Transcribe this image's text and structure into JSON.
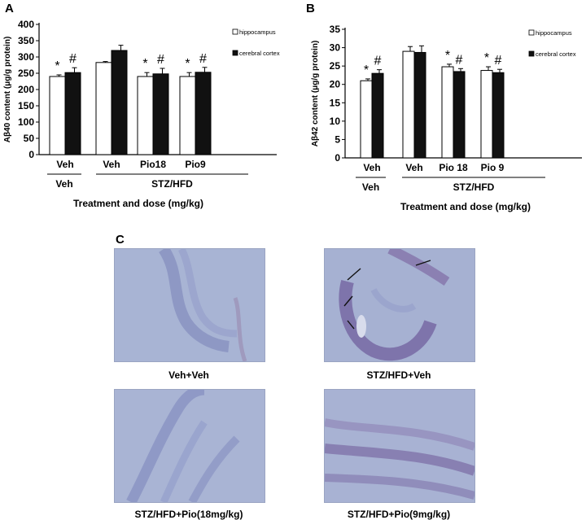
{
  "panels": {
    "a": "A",
    "b": "B",
    "c": "C"
  },
  "chart_data": [
    {
      "type": "bar",
      "panel": "A",
      "ylabel": "Aβ40 content (μg/g protein)",
      "xlabel": "Treatment and dose (mg/kg)",
      "ylim": [
        0,
        400
      ],
      "yticks": [
        0,
        50,
        100,
        150,
        200,
        250,
        300,
        350,
        400
      ],
      "categories": [
        "Veh",
        "Veh",
        "Pio18",
        "Pio9"
      ],
      "groups": [
        {
          "label": "Veh",
          "categories": [
            0
          ]
        },
        {
          "label": "STZ/HFD",
          "categories": [
            1,
            2,
            3
          ]
        }
      ],
      "series": [
        {
          "name": "hippocampus",
          "color": "#ffffff",
          "values": [
            240,
            283,
            240,
            240
          ],
          "errors": [
            5,
            3,
            12,
            12
          ]
        },
        {
          "name": "cerebral cortex",
          "color": "#111111",
          "values": [
            252,
            320,
            248,
            253
          ],
          "errors": [
            15,
            16,
            17,
            15
          ]
        }
      ],
      "significance": [
        {
          "category": 0,
          "series": 0,
          "mark": "*"
        },
        {
          "category": 0,
          "series": 1,
          "mark": "#"
        },
        {
          "category": 2,
          "series": 0,
          "mark": "*"
        },
        {
          "category": 2,
          "series": 1,
          "mark": "#"
        },
        {
          "category": 3,
          "series": 0,
          "mark": "*"
        },
        {
          "category": 3,
          "series": 1,
          "mark": "#"
        }
      ],
      "legend_position": "top-right"
    },
    {
      "type": "bar",
      "panel": "B",
      "ylabel": "Aβ42 content (μg/g protein)",
      "xlabel": "Treatment and dose (mg/kg)",
      "ylim": [
        0,
        35
      ],
      "yticks": [
        0,
        5,
        10,
        15,
        20,
        25,
        30,
        35
      ],
      "categories": [
        "Veh",
        "Veh",
        "Pio 18",
        "Pio 9"
      ],
      "groups": [
        {
          "label": "Veh",
          "categories": [
            0
          ]
        },
        {
          "label": "STZ/HFD",
          "categories": [
            1,
            2,
            3
          ]
        }
      ],
      "series": [
        {
          "name": "hippocampus",
          "color": "#ffffff",
          "values": [
            21,
            29,
            24.8,
            23.8
          ],
          "errors": [
            0.5,
            1.3,
            0.7,
            1.0
          ]
        },
        {
          "name": "cerebral cortex",
          "color": "#111111",
          "values": [
            23,
            28.7,
            23.5,
            23.2
          ],
          "errors": [
            1.0,
            1.8,
            0.8,
            0.9
          ]
        }
      ],
      "significance": [
        {
          "category": 0,
          "series": 0,
          "mark": "*"
        },
        {
          "category": 0,
          "series": 1,
          "mark": "#"
        },
        {
          "category": 2,
          "series": 0,
          "mark": "*"
        },
        {
          "category": 2,
          "series": 1,
          "mark": "#"
        },
        {
          "category": 3,
          "series": 0,
          "mark": "*"
        },
        {
          "category": 3,
          "series": 1,
          "mark": "#"
        }
      ],
      "legend_position": "top-right"
    }
  ],
  "micrographs": [
    {
      "caption": "Veh+Veh"
    },
    {
      "caption": "STZ/HFD+Veh"
    },
    {
      "caption": "STZ/HFD+Pio(18mg/kg)"
    },
    {
      "caption": "STZ/HFD+Pio(9mg/kg)"
    }
  ]
}
